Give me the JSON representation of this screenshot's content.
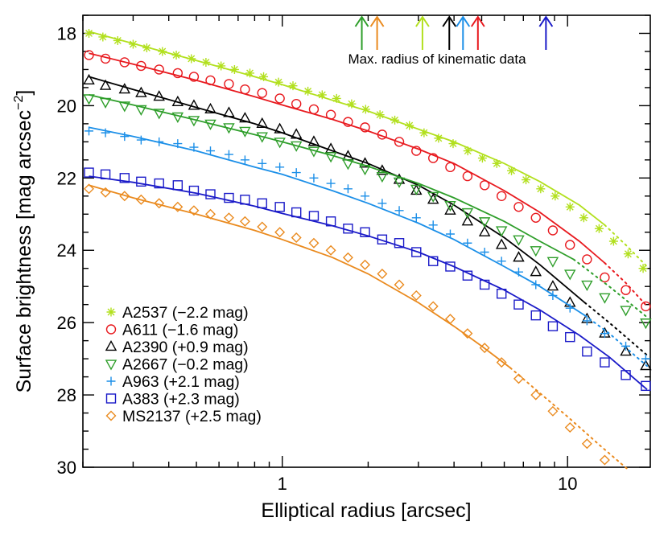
{
  "chart_data": {
    "type": "scatter",
    "xlabel": "Elliptical radius [arcsec]",
    "ylabel": "Surface brightness [mag arcsec",
    "ylabel_sup": "−2",
    "ylabel_close": "]",
    "x_scale": "log",
    "xlim": [
      0.2,
      19.5
    ],
    "ylim": [
      30,
      17.5
    ],
    "y_inverted": true,
    "x_ticks": [
      {
        "value": 1,
        "label": "1"
      },
      {
        "value": 10,
        "label": "10"
      }
    ],
    "y_ticks": [
      {
        "value": 18,
        "label": "18"
      },
      {
        "value": 20,
        "label": "20"
      },
      {
        "value": 22,
        "label": "22"
      },
      {
        "value": 24,
        "label": "24"
      },
      {
        "value": 26,
        "label": "26"
      },
      {
        "value": 28,
        "label": "28"
      },
      {
        "value": 30,
        "label": "30"
      }
    ],
    "legend_position": "bottom-left",
    "annotation": {
      "text": "Max. radius of kinematic data",
      "arrows": [
        {
          "series": "A2667",
          "x": 1.9
        },
        {
          "series": "MS2137",
          "x": 2.15
        },
        {
          "series": "A2537",
          "x": 3.1
        },
        {
          "series": "A2390",
          "x": 3.85
        },
        {
          "series": "A963",
          "x": 4.3
        },
        {
          "series": "A611",
          "x": 4.85
        },
        {
          "series": "A383",
          "x": 8.4
        }
      ]
    },
    "series": [
      {
        "name": "A2537 (−2.2 mag)",
        "color": "#b2e01e",
        "marker": "asterisk",
        "x": [
          0.21,
          0.235,
          0.265,
          0.3,
          0.335,
          0.38,
          0.425,
          0.48,
          0.54,
          0.61,
          0.68,
          0.77,
          0.86,
          0.97,
          1.09,
          1.23,
          1.38,
          1.55,
          1.75,
          1.96,
          2.2,
          2.48,
          2.79,
          3.14,
          3.53,
          3.97,
          4.47,
          5.03,
          5.65,
          6.36,
          7.15,
          8.05,
          9.05,
          10.2,
          11.4,
          12.9,
          14.5,
          16.3,
          18.4
        ],
        "y": [
          18.0,
          18.1,
          18.2,
          18.3,
          18.4,
          18.5,
          18.6,
          18.7,
          18.8,
          18.9,
          19.0,
          19.1,
          19.2,
          19.35,
          19.45,
          19.6,
          19.7,
          19.8,
          19.95,
          20.1,
          20.25,
          20.4,
          20.55,
          20.75,
          20.9,
          21.05,
          21.25,
          21.45,
          21.6,
          21.8,
          22.05,
          22.3,
          22.5,
          22.8,
          23.1,
          23.4,
          23.75,
          24.1,
          24.5
        ],
        "fit_x": [
          0.21,
          0.3,
          0.5,
          0.8,
          1.0,
          1.5,
          2.0,
          3.0,
          4.0,
          6.0,
          8.0,
          11.0,
          13.5
        ],
        "fit_y": [
          17.95,
          18.28,
          18.75,
          19.2,
          19.42,
          19.85,
          20.15,
          20.65,
          21.0,
          21.6,
          22.1,
          22.75,
          23.3
        ],
        "ext_x": [
          13.5,
          16.0,
          19.0
        ],
        "ext_y": [
          23.3,
          23.85,
          24.45
        ]
      },
      {
        "name": "A611 (−1.6 mag)",
        "color": "#e8191e",
        "marker": "circle",
        "x": [
          0.21,
          0.24,
          0.28,
          0.32,
          0.37,
          0.43,
          0.49,
          0.56,
          0.65,
          0.74,
          0.85,
          0.98,
          1.12,
          1.29,
          1.48,
          1.7,
          1.95,
          2.24,
          2.57,
          2.95,
          3.38,
          3.88,
          4.46,
          5.12,
          5.87,
          6.74,
          7.74,
          8.88,
          10.2,
          11.7,
          13.5,
          16.0,
          18.8
        ],
        "y": [
          18.6,
          18.7,
          18.8,
          18.9,
          19.0,
          19.1,
          19.2,
          19.3,
          19.4,
          19.55,
          19.65,
          19.8,
          19.95,
          20.1,
          20.25,
          20.45,
          20.6,
          20.8,
          21.0,
          21.25,
          21.45,
          21.7,
          21.95,
          22.2,
          22.5,
          22.8,
          23.1,
          23.45,
          23.85,
          24.25,
          24.75,
          25.1,
          25.55
        ],
        "fit_x": [
          0.21,
          0.3,
          0.5,
          0.8,
          1.0,
          1.5,
          2.0,
          3.0,
          4.0,
          6.0,
          8.0,
          11.0,
          13.5
        ],
        "fit_y": [
          18.55,
          18.85,
          19.3,
          19.75,
          19.98,
          20.38,
          20.7,
          21.2,
          21.6,
          22.35,
          22.95,
          23.75,
          24.35
        ],
        "ext_x": [
          13.5,
          16.0,
          19.0
        ],
        "ext_y": [
          24.35,
          24.9,
          25.55
        ]
      },
      {
        "name": "A2390 (+0.9 mag)",
        "color": "#000000",
        "marker": "triangle",
        "x": [
          0.21,
          0.24,
          0.28,
          0.32,
          0.37,
          0.43,
          0.49,
          0.56,
          0.65,
          0.74,
          0.85,
          0.98,
          1.12,
          1.29,
          1.48,
          1.7,
          1.95,
          2.24,
          2.57,
          2.95,
          3.38,
          3.88,
          4.46,
          5.12,
          5.87,
          6.74,
          7.74,
          8.88,
          10.2,
          11.7,
          13.5,
          16.0,
          18.8
        ],
        "y": [
          19.3,
          19.45,
          19.55,
          19.65,
          19.75,
          19.9,
          20.0,
          20.1,
          20.2,
          20.35,
          20.5,
          20.65,
          20.8,
          21.0,
          21.2,
          21.4,
          21.6,
          21.8,
          22.05,
          22.35,
          22.6,
          22.9,
          23.2,
          23.5,
          23.85,
          24.2,
          24.6,
          25.0,
          25.45,
          25.9,
          26.3,
          26.8,
          27.2
        ],
        "fit_x": [
          0.21,
          0.3,
          0.5,
          0.8,
          1.0,
          1.5,
          2.0,
          3.0,
          4.0,
          6.0,
          8.0,
          11.5
        ],
        "fit_y": [
          19.2,
          19.55,
          20.05,
          20.5,
          20.75,
          21.25,
          21.6,
          22.2,
          22.75,
          23.65,
          24.4,
          25.45
        ],
        "ext_x": [
          11.5,
          14.0,
          19.0
        ],
        "ext_y": [
          25.45,
          26.0,
          26.9
        ]
      },
      {
        "name": "A2667 (−0.2 mag)",
        "color": "#2e9e2a",
        "marker": "triangle-down",
        "x": [
          0.21,
          0.24,
          0.28,
          0.32,
          0.37,
          0.43,
          0.49,
          0.56,
          0.65,
          0.74,
          0.85,
          0.98,
          1.12,
          1.29,
          1.48,
          1.7,
          1.95,
          2.24,
          2.57,
          2.95,
          3.38,
          3.88,
          4.46,
          5.12,
          5.87,
          6.74,
          7.74,
          8.88,
          10.2,
          11.7,
          13.5,
          16.0,
          18.8
        ],
        "y": [
          19.8,
          19.9,
          20.0,
          20.1,
          20.2,
          20.3,
          20.4,
          20.5,
          20.6,
          20.7,
          20.85,
          21.0,
          21.1,
          21.25,
          21.4,
          21.6,
          21.75,
          21.95,
          22.1,
          22.3,
          22.5,
          22.75,
          22.95,
          23.2,
          23.45,
          23.7,
          24.0,
          24.3,
          24.65,
          24.95,
          25.3,
          25.65,
          26.0
        ],
        "fit_x": [
          0.21,
          0.3,
          0.5,
          0.8,
          1.0,
          1.5,
          2.0,
          3.0,
          4.0,
          6.0,
          8.0,
          10.5
        ],
        "fit_y": [
          19.7,
          19.98,
          20.4,
          20.8,
          21.0,
          21.38,
          21.68,
          22.15,
          22.55,
          23.2,
          23.75,
          24.25
        ],
        "ext_x": [
          10.5,
          14.0,
          19.0
        ],
        "ext_y": [
          24.25,
          25.0,
          25.85
        ]
      },
      {
        "name": "A963 (+2.1 mag)",
        "color": "#1b8fe8",
        "marker": "plus",
        "x": [
          0.21,
          0.24,
          0.28,
          0.32,
          0.37,
          0.43,
          0.49,
          0.56,
          0.65,
          0.74,
          0.85,
          0.98,
          1.12,
          1.29,
          1.48,
          1.7,
          1.95,
          2.24,
          2.57,
          2.95,
          3.38,
          3.88,
          4.46,
          5.12,
          5.87,
          6.74,
          7.74,
          8.88,
          10.2,
          11.7,
          13.5,
          16.0,
          18.8
        ],
        "y": [
          20.7,
          20.75,
          20.85,
          20.95,
          21.0,
          21.05,
          21.15,
          21.25,
          21.35,
          21.5,
          21.6,
          21.7,
          21.85,
          22.0,
          22.15,
          22.3,
          22.5,
          22.7,
          22.9,
          23.1,
          23.3,
          23.55,
          23.8,
          24.05,
          24.3,
          24.6,
          24.95,
          25.25,
          25.6,
          25.95,
          26.3,
          26.65,
          27.0
        ],
        "fit_x": [
          0.21,
          0.3,
          0.5,
          0.8,
          1.0,
          1.5,
          2.0,
          3.0,
          4.0,
          6.0,
          8.0,
          11.5
        ],
        "fit_y": [
          20.6,
          20.85,
          21.25,
          21.7,
          21.9,
          22.35,
          22.7,
          23.25,
          23.7,
          24.45,
          25.0,
          25.8
        ],
        "ext_x": [
          11.5,
          14.0,
          19.0
        ],
        "ext_y": [
          25.8,
          26.3,
          27.2
        ]
      },
      {
        "name": "A383 (+2.3 mag)",
        "color": "#1a1ac8",
        "marker": "square",
        "x": [
          0.21,
          0.24,
          0.28,
          0.32,
          0.37,
          0.43,
          0.49,
          0.56,
          0.65,
          0.74,
          0.85,
          0.98,
          1.12,
          1.29,
          1.48,
          1.7,
          1.95,
          2.24,
          2.57,
          2.95,
          3.38,
          3.88,
          4.46,
          5.12,
          5.87,
          6.74,
          7.74,
          8.88,
          10.2,
          11.7,
          13.5,
          16.0,
          18.8
        ],
        "y": [
          21.85,
          21.9,
          22.0,
          22.1,
          22.15,
          22.2,
          22.35,
          22.45,
          22.55,
          22.6,
          22.7,
          22.8,
          22.95,
          23.05,
          23.2,
          23.4,
          23.5,
          23.7,
          23.8,
          24.05,
          24.3,
          24.45,
          24.7,
          24.95,
          25.2,
          25.5,
          25.8,
          26.1,
          26.4,
          26.8,
          27.1,
          27.45,
          27.75
        ],
        "fit_x": [
          0.21,
          0.3,
          0.5,
          0.8,
          1.0,
          1.5,
          2.0,
          3.0,
          4.0,
          6.0,
          8.0,
          11.0,
          14.0,
          19.0
        ],
        "fit_y": [
          21.95,
          22.12,
          22.42,
          22.78,
          22.98,
          23.32,
          23.6,
          24.05,
          24.45,
          25.1,
          25.65,
          26.35,
          26.95,
          27.85
        ],
        "ext_x": [],
        "ext_y": []
      },
      {
        "name": "MS2137 (+2.5 mag)",
        "color": "#ea8a1e",
        "marker": "diamond",
        "x": [
          0.21,
          0.24,
          0.28,
          0.32,
          0.37,
          0.43,
          0.49,
          0.56,
          0.65,
          0.74,
          0.85,
          0.98,
          1.12,
          1.29,
          1.48,
          1.7,
          1.95,
          2.24,
          2.57,
          2.95,
          3.38,
          3.88,
          4.46,
          5.12,
          5.87,
          6.74,
          7.74,
          8.88,
          10.2,
          11.7,
          13.5,
          16.0
        ],
        "y": [
          22.3,
          22.4,
          22.5,
          22.6,
          22.7,
          22.8,
          22.9,
          23.0,
          23.1,
          23.2,
          23.35,
          23.5,
          23.65,
          23.8,
          24.0,
          24.2,
          24.4,
          24.65,
          24.95,
          25.25,
          25.55,
          25.9,
          26.3,
          26.7,
          27.1,
          27.55,
          28.0,
          28.45,
          28.9,
          29.35,
          29.8,
          30.1
        ],
        "fit_x": [
          0.21,
          0.3,
          0.5,
          0.8,
          1.0,
          1.5,
          2.0,
          3.0,
          4.0,
          5.0,
          6.3
        ],
        "fit_y": [
          22.2,
          22.55,
          23.0,
          23.45,
          23.7,
          24.2,
          24.65,
          25.45,
          26.1,
          26.65,
          27.25
        ],
        "ext_x": [
          6.3,
          8.0,
          10.0,
          13.0,
          16.5
        ],
        "ext_y": [
          27.25,
          27.95,
          28.6,
          29.4,
          30.1
        ]
      }
    ]
  }
}
